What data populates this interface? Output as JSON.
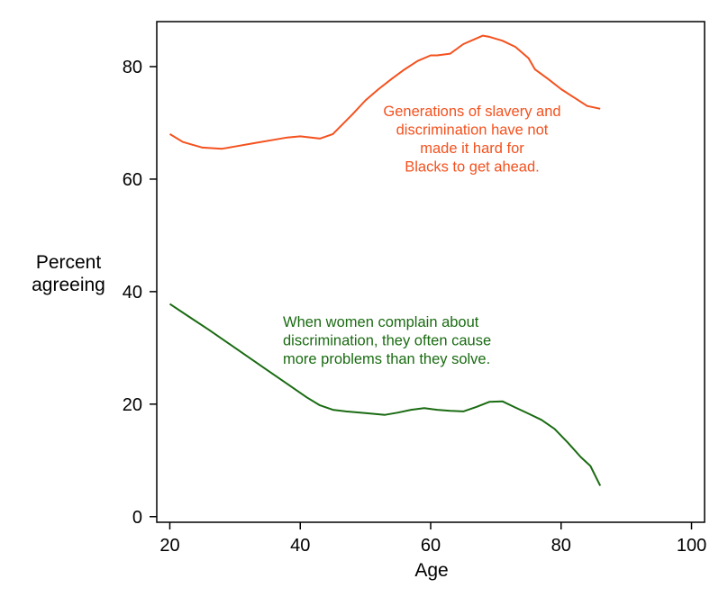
{
  "chart_data": {
    "type": "line",
    "title": "",
    "xlabel": "Age",
    "ylabel": [
      "Percent",
      "agreeing"
    ],
    "xlim": [
      18,
      102
    ],
    "ylim": [
      -1,
      88
    ],
    "xticks": [
      20,
      40,
      60,
      80,
      100
    ],
    "yticks": [
      0,
      20,
      40,
      60,
      80
    ],
    "grid": false,
    "series": [
      {
        "name": "Generations of slavery and discrimination have not made it hard for Blacks to get ahead.",
        "color": "#f4511e",
        "annotation_lines": [
          "Generations of slavery and",
          "discrimination have not",
          "made it hard for",
          "Blacks to get ahead."
        ],
        "x": [
          20,
          22,
          25,
          28,
          30,
          33,
          36,
          38,
          40,
          43,
          45,
          48,
          50,
          52,
          54,
          56,
          58,
          60,
          61,
          63,
          65,
          67,
          68,
          69,
          71,
          73,
          75,
          76,
          78,
          80,
          82,
          84,
          86
        ],
        "y": [
          68,
          66.6,
          65.6,
          65.4,
          65.8,
          66.4,
          67.0,
          67.4,
          67.6,
          67.2,
          68.0,
          71.5,
          74.0,
          76.0,
          77.8,
          79.5,
          81.0,
          82.0,
          82.0,
          82.3,
          84.0,
          85.0,
          85.5,
          85.3,
          84.6,
          83.5,
          81.5,
          79.5,
          77.8,
          76.0,
          74.5,
          73.0,
          72.5
        ]
      },
      {
        "name": "When women complain about discrimination, they often cause more problems than they solve.",
        "color": "#1a6b12",
        "annotation_lines": [
          "When women complain about",
          "discrimination, they often cause",
          "more problems than they solve."
        ],
        "x": [
          20,
          23,
          26,
          29,
          32,
          35,
          38,
          41,
          43,
          45,
          47,
          50,
          53,
          55,
          57,
          59,
          61,
          63,
          65,
          67,
          69,
          71,
          73,
          75,
          77,
          79,
          81,
          83,
          84.5,
          86
        ],
        "y": [
          37.8,
          35.5,
          33.2,
          30.8,
          28.4,
          26.0,
          23.6,
          21.2,
          19.8,
          19.0,
          18.7,
          18.4,
          18.1,
          18.5,
          19.0,
          19.3,
          19.0,
          18.8,
          18.7,
          19.5,
          20.4,
          20.5,
          19.4,
          18.3,
          17.2,
          15.6,
          13.2,
          10.6,
          9.0,
          5.5
        ]
      }
    ]
  }
}
